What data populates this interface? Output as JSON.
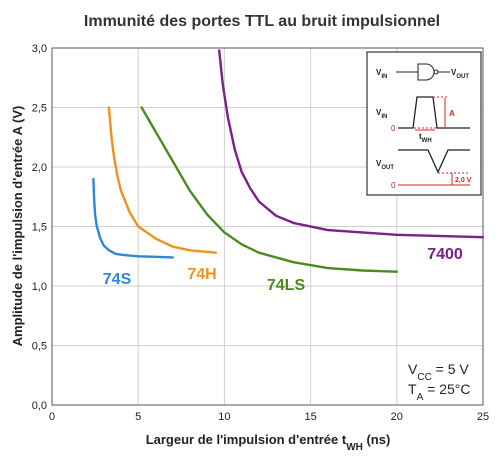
{
  "chart_data": {
    "type": "line",
    "title": "Immunité des portes TTL au bruit impulsionnel",
    "x_label": {
      "text": "Largeur de l'impulsion d'entrée  t",
      "sub": "WH",
      "rest": " (ns)"
    },
    "y_label": "Amplitude de l'impulsion d'entrée A (V)",
    "xlim": [
      0,
      25
    ],
    "xticks": [
      0,
      5,
      10,
      15,
      20,
      25
    ],
    "ylim": [
      0,
      3
    ],
    "yticks": [
      {
        "value": 0,
        "label": "0,0"
      },
      {
        "value": 0.5,
        "label": "0,5"
      },
      {
        "value": 1,
        "label": "1,0"
      },
      {
        "value": 1.5,
        "label": "1,5"
      },
      {
        "value": 2,
        "label": "2,0"
      },
      {
        "value": 2.5,
        "label": "2,5"
      },
      {
        "value": 3,
        "label": "3,0"
      }
    ],
    "grid": true,
    "series": [
      {
        "name": "74S",
        "color": "#2f86d8",
        "x": [
          2.4,
          2.45,
          2.5,
          2.6,
          2.8,
          3.0,
          3.3,
          3.7,
          4.2,
          5,
          6,
          7
        ],
        "values": [
          1.9,
          1.72,
          1.6,
          1.5,
          1.4,
          1.34,
          1.3,
          1.27,
          1.26,
          1.25,
          1.245,
          1.24
        ]
      },
      {
        "name": "74H",
        "color": "#f0901e",
        "x": [
          3.3,
          3.45,
          3.6,
          3.8,
          4.0,
          4.5,
          5,
          6,
          7,
          8,
          9.5
        ],
        "values": [
          2.5,
          2.25,
          2.08,
          1.92,
          1.8,
          1.62,
          1.5,
          1.4,
          1.33,
          1.3,
          1.28
        ]
      },
      {
        "name": "74LS",
        "color": "#4a8a1e",
        "x": [
          5.2,
          6,
          7,
          8,
          9,
          10,
          11,
          12,
          14,
          16,
          18,
          20
        ],
        "values": [
          2.5,
          2.3,
          2.05,
          1.8,
          1.6,
          1.45,
          1.35,
          1.28,
          1.2,
          1.15,
          1.13,
          1.12
        ]
      },
      {
        "name": "7400",
        "color": "#7b1f8a",
        "x": [
          9.7,
          9.9,
          10.2,
          10.6,
          11,
          11.5,
          12,
          13,
          14,
          16,
          18,
          20,
          25
        ],
        "values": [
          2.98,
          2.7,
          2.42,
          2.15,
          1.96,
          1.82,
          1.71,
          1.59,
          1.53,
          1.47,
          1.45,
          1.43,
          1.41
        ]
      }
    ],
    "annotations": [
      {
        "main": "V",
        "sub": "CC",
        "rest": " = 5 V"
      },
      {
        "main": "T",
        "sub": "A",
        "rest": " = 25°C"
      }
    ],
    "inset": {
      "vin": {
        "main": "V",
        "sub": "IN"
      },
      "vout": {
        "main": "V",
        "sub": "OUT"
      },
      "amplitude": "A",
      "width": {
        "main": "t",
        "sub": "WH"
      },
      "zero": "0",
      "threshold": "2,0 V"
    }
  }
}
